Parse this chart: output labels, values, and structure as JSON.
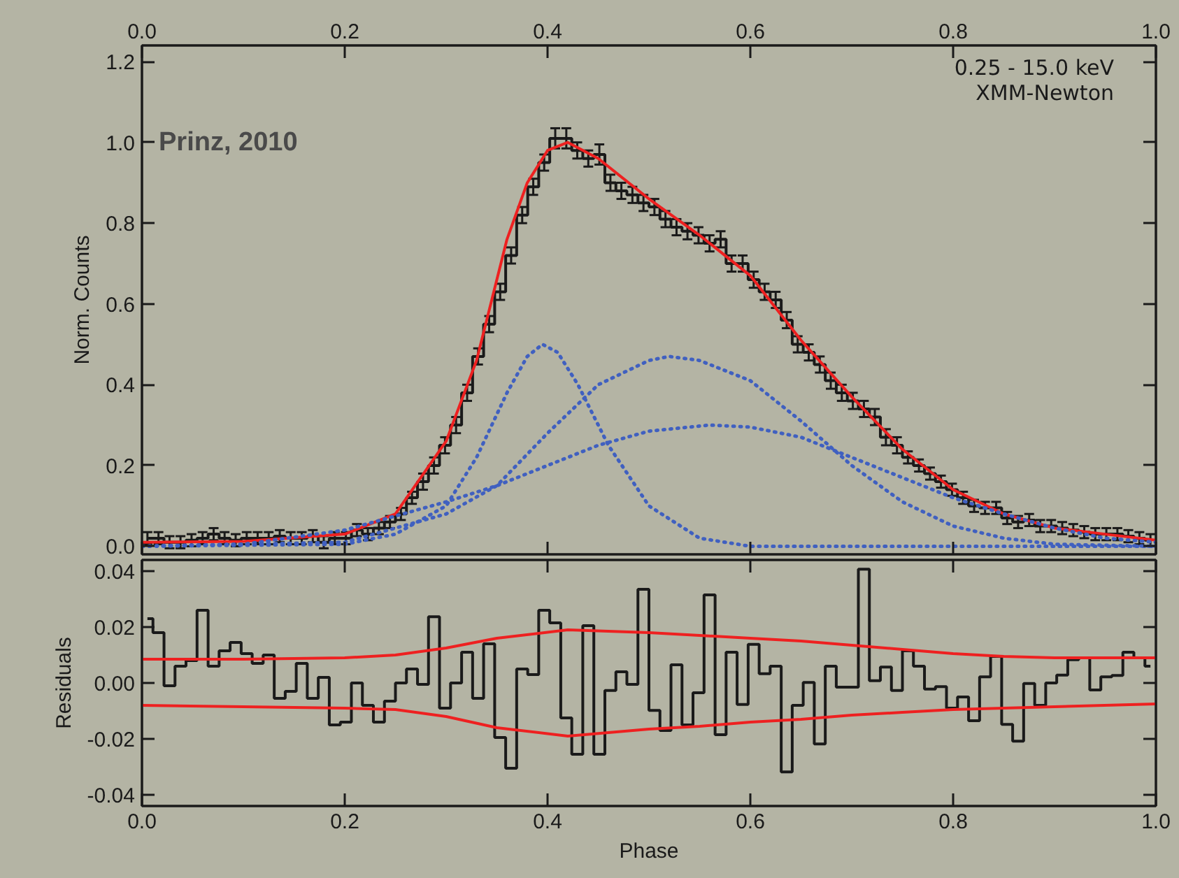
{
  "chart_data": [
    {
      "type": "step",
      "ylabel": "Norm. Counts",
      "xlim": [
        0,
        1
      ],
      "ylim": [
        -0.02,
        1.24
      ],
      "x2lim": [
        0,
        1
      ],
      "x2ticks": [
        {
          "value": 0,
          "label": "0.0"
        },
        {
          "value": 0.2,
          "label": "0.2"
        },
        {
          "value": 0.4,
          "label": "0.4"
        },
        {
          "value": 0.6,
          "label": "0.6"
        },
        {
          "value": 0.8,
          "label": "0.8"
        },
        {
          "value": 1,
          "label": "1.0"
        }
      ],
      "yticks": [
        {
          "value": 0,
          "label": "0.0"
        },
        0.2,
        0.4,
        0.6,
        0.8,
        {
          "value": 1,
          "label": "1.0"
        },
        1.2
      ],
      "tick_labels": "y",
      "grid": false,
      "annotations": [
        "Prinz, 2010",
        "0.25 - 15.0 keV",
        "XMM-Newton"
      ],
      "x": [
        0.0054,
        0.0163,
        0.0272,
        0.038,
        0.0489,
        0.0598,
        0.0707,
        0.0815,
        0.0924,
        0.1033,
        0.1141,
        0.125,
        0.1359,
        0.1467,
        0.1576,
        0.1685,
        0.1793,
        0.1902,
        0.2011,
        0.212,
        0.2228,
        0.2337,
        0.2446,
        0.2554,
        0.2663,
        0.2772,
        0.288,
        0.2989,
        0.3098,
        0.3207,
        0.3315,
        0.3424,
        0.3533,
        0.3641,
        0.375,
        0.3859,
        0.3967,
        0.4076,
        0.4185,
        0.4293,
        0.4402,
        0.4511,
        0.462,
        0.4728,
        0.4837,
        0.4946,
        0.5054,
        0.5163,
        0.5272,
        0.538,
        0.5489,
        0.5598,
        0.5707,
        0.5815,
        0.5924,
        0.6033,
        0.6141,
        0.625,
        0.6359,
        0.6467,
        0.6576,
        0.6685,
        0.6793,
        0.6902,
        0.7011,
        0.712,
        0.7228,
        0.7337,
        0.7446,
        0.7554,
        0.7663,
        0.7772,
        0.788,
        0.7989,
        0.8098,
        0.8207,
        0.8315,
        0.8424,
        0.8533,
        0.8641,
        0.875,
        0.8859,
        0.8967,
        0.9076,
        0.9185,
        0.9293,
        0.9402,
        0.9511,
        0.962,
        0.9728,
        0.9837,
        0.9946
      ],
      "series": [
        {
          "color": "#1a1a1a",
          "values": [
            0.02,
            0.02,
            0.01,
            0.01,
            0.015,
            0.02,
            0.03,
            0.02,
            0.015,
            0.02,
            0.02,
            0.02,
            0.025,
            0.02,
            0.02,
            0.025,
            0.01,
            0.02,
            0.02,
            0.04,
            0.03,
            0.045,
            0.06,
            0.08,
            0.12,
            0.16,
            0.2,
            0.25,
            0.3,
            0.38,
            0.47,
            0.55,
            0.63,
            0.72,
            0.82,
            0.89,
            0.95,
            1.01,
            1.01,
            0.98,
            0.96,
            0.97,
            0.9,
            0.88,
            0.87,
            0.85,
            0.84,
            0.81,
            0.79,
            0.78,
            0.77,
            0.75,
            0.76,
            0.7,
            0.7,
            0.66,
            0.63,
            0.61,
            0.56,
            0.5,
            0.48,
            0.45,
            0.41,
            0.38,
            0.36,
            0.34,
            0.32,
            0.27,
            0.25,
            0.22,
            0.2,
            0.18,
            0.16,
            0.14,
            0.12,
            0.1,
            0.095,
            0.095,
            0.07,
            0.06,
            0.065,
            0.05,
            0.05,
            0.045,
            0.04,
            0.035,
            0.03,
            0.03,
            0.03,
            0.025,
            0.02,
            0.015
          ],
          "errors": [
            0.015,
            0.015,
            0.015,
            0.015,
            0.015,
            0.015,
            0.015,
            0.015,
            0.015,
            0.015,
            0.015,
            0.015,
            0.015,
            0.015,
            0.015,
            0.015,
            0.015,
            0.015,
            0.015,
            0.015,
            0.015,
            0.015,
            0.015,
            0.015,
            0.015,
            0.02,
            0.02,
            0.02,
            0.02,
            0.02,
            0.02,
            0.02,
            0.02,
            0.02,
            0.02,
            0.02,
            0.02,
            0.025,
            0.025,
            0.02,
            0.02,
            0.025,
            0.02,
            0.02,
            0.02,
            0.02,
            0.02,
            0.02,
            0.02,
            0.02,
            0.02,
            0.02,
            0.02,
            0.02,
            0.02,
            0.02,
            0.02,
            0.02,
            0.02,
            0.02,
            0.02,
            0.02,
            0.02,
            0.02,
            0.02,
            0.02,
            0.02,
            0.02,
            0.02,
            0.015,
            0.015,
            0.015,
            0.015,
            0.015,
            0.015,
            0.015,
            0.015,
            0.015,
            0.015,
            0.015,
            0.015,
            0.015,
            0.015,
            0.015,
            0.015,
            0.015,
            0.015,
            0.015,
            0.015,
            0.015,
            0.015,
            0.015
          ]
        },
        {
          "type": "line",
          "color": "#ee2020",
          "line_style": "solid",
          "x": [
            0,
            0.1,
            0.2,
            0.25,
            0.3,
            0.33,
            0.36,
            0.38,
            0.4,
            0.42,
            0.45,
            0.5,
            0.55,
            0.6,
            0.65,
            0.7,
            0.75,
            0.8,
            0.85,
            0.9,
            0.95,
            1.0
          ],
          "values": [
            0.01,
            0.012,
            0.03,
            0.08,
            0.26,
            0.46,
            0.76,
            0.9,
            0.98,
            1.0,
            0.96,
            0.86,
            0.77,
            0.67,
            0.51,
            0.37,
            0.24,
            0.14,
            0.08,
            0.045,
            0.03,
            0.015
          ]
        },
        {
          "type": "line",
          "color": "#4060c0",
          "line_style": "dotted",
          "x": [
            0,
            0.2,
            0.25,
            0.3,
            0.33,
            0.36,
            0.38,
            0.395,
            0.41,
            0.43,
            0.46,
            0.5,
            0.55,
            0.6,
            1.0
          ],
          "values": [
            0,
            0.005,
            0.03,
            0.1,
            0.22,
            0.38,
            0.47,
            0.5,
            0.48,
            0.4,
            0.25,
            0.1,
            0.02,
            0,
            0
          ]
        },
        {
          "type": "line",
          "color": "#4060c0",
          "line_style": "dotted",
          "x": [
            0,
            0.2,
            0.3,
            0.35,
            0.4,
            0.45,
            0.5,
            0.52,
            0.55,
            0.6,
            0.65,
            0.7,
            0.75,
            0.8,
            0.85,
            0.9,
            1.0
          ],
          "values": [
            0,
            0.01,
            0.08,
            0.15,
            0.28,
            0.4,
            0.46,
            0.47,
            0.46,
            0.41,
            0.31,
            0.2,
            0.11,
            0.05,
            0.02,
            0.005,
            0
          ]
        },
        {
          "type": "line",
          "color": "#4060c0",
          "line_style": "dotted",
          "x": [
            0,
            0.1,
            0.2,
            0.3,
            0.35,
            0.4,
            0.45,
            0.5,
            0.56,
            0.6,
            0.65,
            0.7,
            0.75,
            0.8,
            0.85,
            0.9,
            0.95,
            1.0
          ],
          "values": [
            0,
            0.005,
            0.04,
            0.11,
            0.15,
            0.2,
            0.25,
            0.285,
            0.3,
            0.295,
            0.27,
            0.22,
            0.17,
            0.12,
            0.08,
            0.045,
            0.02,
            0.01
          ]
        }
      ]
    },
    {
      "type": "step",
      "xlabel": "Phase",
      "ylabel": "Residuals",
      "xlim": [
        0,
        1
      ],
      "ylim": [
        -0.044,
        0.044
      ],
      "xticks": [
        {
          "value": 0,
          "label": "0.0"
        },
        {
          "value": 0.2,
          "label": "0.2"
        },
        {
          "value": 0.4,
          "label": "0.4"
        },
        {
          "value": 0.6,
          "label": "0.6"
        },
        {
          "value": 0.8,
          "label": "0.8"
        },
        {
          "value": 1,
          "label": "1.0"
        }
      ],
      "yticks": [
        {
          "value": -0.04,
          "label": "-0.04"
        },
        {
          "value": -0.02,
          "label": "-0.02"
        },
        {
          "value": 0,
          "label": "0.00"
        },
        {
          "value": 0.02,
          "label": "0.02"
        },
        {
          "value": 0.04,
          "label": "0.04"
        }
      ],
      "grid": false,
      "x": [
        0.0054,
        0.0163,
        0.0272,
        0.038,
        0.0489,
        0.0598,
        0.0707,
        0.0815,
        0.0924,
        0.1033,
        0.1141,
        0.125,
        0.1359,
        0.1467,
        0.1576,
        0.1685,
        0.1793,
        0.1902,
        0.2011,
        0.212,
        0.2228,
        0.2337,
        0.2446,
        0.2554,
        0.2663,
        0.2772,
        0.288,
        0.2989,
        0.3098,
        0.3207,
        0.3315,
        0.3424,
        0.3533,
        0.3641,
        0.375,
        0.3859,
        0.3967,
        0.4076,
        0.4185,
        0.4293,
        0.4402,
        0.4511,
        0.462,
        0.4728,
        0.4837,
        0.4946,
        0.5054,
        0.5163,
        0.5272,
        0.538,
        0.5489,
        0.5598,
        0.5707,
        0.5815,
        0.5924,
        0.6033,
        0.6141,
        0.625,
        0.6359,
        0.6467,
        0.6576,
        0.6685,
        0.6793,
        0.6902,
        0.7011,
        0.712,
        0.7228,
        0.7337,
        0.7446,
        0.7554,
        0.7663,
        0.7772,
        0.788,
        0.7989,
        0.8098,
        0.8207,
        0.8315,
        0.8424,
        0.8533,
        0.8641,
        0.875,
        0.8859,
        0.8967,
        0.9076,
        0.9185,
        0.9293,
        0.9402,
        0.9511,
        0.962,
        0.9728,
        0.9837,
        0.9946
      ],
      "series": [
        {
          "color": "#1a1a1a",
          "values": [
            0.023,
            0.018,
            -0.001,
            0.006,
            0.008,
            0.026,
            0.006,
            0.0115,
            0.0145,
            0.0105,
            0.007,
            0.01,
            -0.0055,
            -0.003,
            0.007,
            -0.0055,
            0.002,
            -0.015,
            -0.014,
            0.0,
            -0.008,
            -0.014,
            -0.0065,
            0.0,
            0.005,
            -0.0005,
            0.0237,
            -0.009,
            0.0,
            0.011,
            -0.0055,
            0.014,
            -0.0195,
            -0.0305,
            0.005,
            0.003,
            0.026,
            0.0215,
            -0.0125,
            -0.0255,
            0.0205,
            -0.0255,
            -0.0027,
            0.004,
            -0.0005,
            0.0335,
            -0.0098,
            -0.017,
            0.0065,
            -0.015,
            -0.0035,
            0.0315,
            -0.0185,
            0.011,
            -0.0077,
            0.0138,
            0.0033,
            0.006,
            -0.0318,
            -0.008,
            0.0002,
            -0.0218,
            0.006,
            -0.0015,
            -0.0015,
            0.0407,
            0.0008,
            0.0057,
            -0.0027,
            0.0115,
            0.006,
            -0.0022,
            -0.0013,
            -0.009,
            -0.005,
            -0.0135,
            0.0022,
            0.0095,
            -0.0148,
            -0.0208,
            -0.0002,
            -0.008,
            0.0,
            0.0028,
            0.0083,
            0.009,
            -0.0025,
            0.0022,
            0.0027,
            0.011,
            0.009,
            0.006
          ]
        },
        {
          "type": "line",
          "color": "#ee2020",
          "line_style": "solid",
          "x": [
            0,
            0.1,
            0.2,
            0.25,
            0.3,
            0.35,
            0.42,
            0.5,
            0.55,
            0.6,
            0.65,
            0.7,
            0.75,
            0.8,
            0.85,
            0.9,
            1.0
          ],
          "values": [
            0.0085,
            0.0085,
            0.009,
            0.01,
            0.0125,
            0.016,
            0.019,
            0.018,
            0.017,
            0.016,
            0.015,
            0.0135,
            0.012,
            0.0105,
            0.0095,
            0.009,
            0.009
          ]
        },
        {
          "type": "line",
          "color": "#ee2020",
          "line_style": "solid",
          "x": [
            0,
            0.1,
            0.2,
            0.25,
            0.3,
            0.35,
            0.42,
            0.5,
            0.55,
            0.6,
            0.65,
            0.7,
            0.75,
            0.8,
            0.85,
            0.9,
            1.0
          ],
          "values": [
            -0.008,
            -0.0085,
            -0.009,
            -0.0095,
            -0.012,
            -0.016,
            -0.019,
            -0.0165,
            -0.0155,
            -0.014,
            -0.013,
            -0.0115,
            -0.0105,
            -0.0095,
            -0.009,
            -0.0085,
            -0.0075
          ]
        }
      ]
    }
  ]
}
